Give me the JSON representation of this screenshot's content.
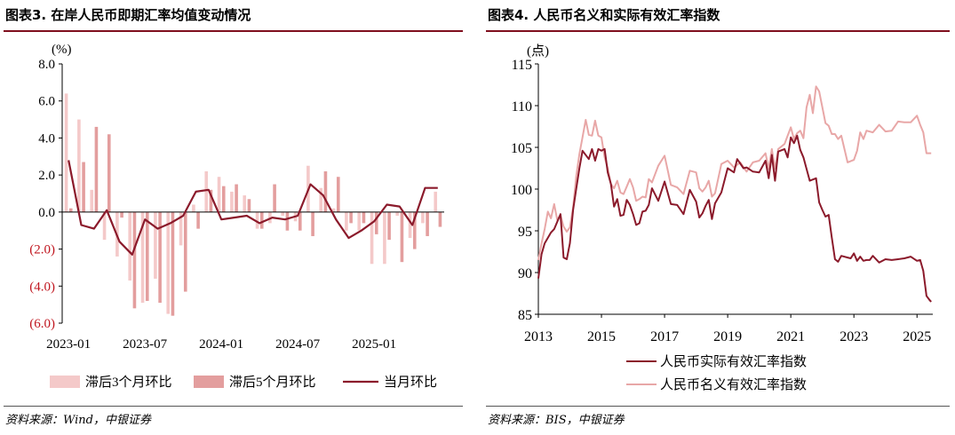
{
  "left": {
    "title": "图表3. 在岸人民币即期汇率均值变动情况",
    "source": "资料来源：Wind，中银证券",
    "chart_data": {
      "type": "bar",
      "unit_label": "(%)",
      "ylim": [
        -6,
        8
      ],
      "yticks": [
        8,
        6,
        4,
        2,
        0,
        -2,
        -4,
        -6
      ],
      "ytick_labels": [
        "8.0",
        "6.0",
        "4.0",
        "2.0",
        "0.0",
        "(2.0)",
        "(4.0)",
        "(6.0)"
      ],
      "xtick_labels": [
        "2023-01",
        "2023-07",
        "2024-01",
        "2024-07",
        "2025-01"
      ],
      "months": [
        "2023-01",
        "2023-02",
        "2023-03",
        "2023-04",
        "2023-05",
        "2023-06",
        "2023-07",
        "2023-08",
        "2023-09",
        "2023-10",
        "2023-11",
        "2023-12",
        "2024-01",
        "2024-02",
        "2024-03",
        "2024-04",
        "2024-05",
        "2024-06",
        "2024-07",
        "2024-08",
        "2024-09",
        "2024-10",
        "2024-11",
        "2024-12",
        "2025-01",
        "2025-02",
        "2025-03",
        "2025-04",
        "2025-05",
        "2025-06"
      ],
      "series": [
        {
          "name": "滞后3个月环比",
          "color": "#f4c9c9",
          "type": "bar",
          "values": [
            6.4,
            5.0,
            1.2,
            -1.5,
            -2.4,
            -3.7,
            -4.9,
            -3.6,
            -5.5,
            -1.8,
            0.4,
            2.2,
            1.9,
            1.1,
            0.9,
            -0.9,
            -0.6,
            -0.2,
            -0.5,
            2.5,
            1.3,
            0.2,
            -1.0,
            -1.0,
            -2.8,
            -2.8,
            -0.2,
            -1.4,
            -0.6,
            1.1
          ]
        },
        {
          "name": "滞后5个月环比",
          "color": "#e39e9e",
          "type": "bar",
          "values": [
            0.2,
            2.7,
            4.6,
            4.2,
            -0.3,
            -5.2,
            -4.8,
            -4.9,
            -5.6,
            -4.3,
            -0.9,
            1.2,
            1.4,
            1.5,
            0.7,
            -0.9,
            1.5,
            -1.0,
            -1.0,
            -1.3,
            2.2,
            1.9,
            -0.6,
            -0.6,
            -1.2,
            -1.5,
            -2.7,
            -2.0,
            -1.3,
            -0.8
          ]
        },
        {
          "name": "当月环比",
          "color": "#8b1a2b",
          "type": "line",
          "values": [
            2.8,
            -0.7,
            -0.9,
            0.1,
            -1.6,
            -2.3,
            -0.4,
            -0.9,
            -0.6,
            -0.2,
            1.1,
            1.2,
            -0.4,
            -0.3,
            -0.2,
            -0.6,
            -0.3,
            -0.4,
            -0.2,
            1.5,
            0.9,
            -0.4,
            -1.4,
            -1.0,
            -0.5,
            0.4,
            0.3,
            -0.7,
            1.3,
            1.3
          ]
        }
      ]
    }
  },
  "right": {
    "title": "图表4. 人民币名义和实际有效汇率指数",
    "source": "资料来源：BIS，中银证券",
    "chart_data": {
      "type": "line",
      "unit_label": "(点)",
      "ylim": [
        85,
        115
      ],
      "yticks": [
        85,
        90,
        95,
        100,
        105,
        110,
        115
      ],
      "xlim": [
        2013,
        2025.5
      ],
      "xticks": [
        2013,
        2015,
        2017,
        2019,
        2021,
        2023,
        2025
      ],
      "series": [
        {
          "name": "人民币实际有效汇率指数",
          "color": "#8b1a2b",
          "x": [
            2013.0,
            2013.1,
            2013.2,
            2013.4,
            2013.5,
            2013.7,
            2013.8,
            2013.9,
            2014.0,
            2014.1,
            2014.2,
            2014.3,
            2014.4,
            2014.6,
            2014.7,
            2014.8,
            2014.9,
            2015.0,
            2015.1,
            2015.2,
            2015.3,
            2015.4,
            2015.5,
            2015.6,
            2015.7,
            2015.8,
            2015.9,
            2016.0,
            2016.1,
            2016.2,
            2016.3,
            2016.4,
            2016.5,
            2016.6,
            2016.8,
            2017.0,
            2017.2,
            2017.4,
            2017.6,
            2017.8,
            2018.0,
            2018.1,
            2018.2,
            2018.3,
            2018.4,
            2018.5,
            2018.6,
            2018.8,
            2019.0,
            2019.2,
            2019.3,
            2019.5,
            2019.6,
            2019.8,
            2020.0,
            2020.2,
            2020.3,
            2020.4,
            2020.5,
            2020.6,
            2020.8,
            2020.9,
            2021.0,
            2021.1,
            2021.2,
            2021.3,
            2021.4,
            2021.6,
            2021.8,
            2021.9,
            2022.0,
            2022.1,
            2022.2,
            2022.3,
            2022.4,
            2022.5,
            2022.6,
            2022.8,
            2022.9,
            2023.0,
            2023.1,
            2023.2,
            2023.3,
            2023.4,
            2023.5,
            2023.6,
            2023.8,
            2024.0,
            2024.2,
            2024.4,
            2024.6,
            2024.8,
            2025.0,
            2025.1,
            2025.2,
            2025.3,
            2025.4,
            2025.45
          ],
          "y": [
            89.3,
            92.2,
            93.5,
            94.8,
            95.2,
            97.0,
            91.8,
            91.6,
            93.5,
            97.5,
            100.0,
            102.5,
            104.6,
            103.6,
            104.8,
            103.4,
            104.8,
            104.6,
            104.8,
            102.0,
            100.6,
            97.9,
            98.8,
            96.8,
            96.9,
            98.7,
            98.1,
            97.0,
            95.7,
            95.9,
            97.3,
            97.4,
            98.1,
            100.1,
            98.6,
            100.9,
            98.2,
            98.1,
            97.0,
            99.9,
            98.5,
            96.6,
            97.1,
            98.0,
            98.7,
            96.4,
            98.3,
            99.6,
            102.5,
            102.0,
            103.6,
            102.5,
            102.6,
            102.1,
            102.0,
            103.4,
            101.3,
            104.1,
            101.0,
            104.5,
            104.8,
            103.8,
            106.2,
            105.5,
            106.4,
            104.7,
            103.8,
            101.0,
            101.3,
            98.4,
            97.5,
            96.7,
            96.9,
            94.2,
            91.6,
            91.3,
            92.0,
            91.8,
            91.7,
            92.3,
            91.4,
            91.9,
            91.4,
            91.5,
            91.5,
            92.0,
            91.2,
            91.6,
            91.5,
            91.6,
            91.7,
            91.9,
            91.4,
            91.5,
            90.2,
            87.2,
            86.7,
            86.5
          ]
        },
        {
          "name": "人民币名义有效汇率指数",
          "color": "#e8a7a7",
          "x": [
            2013.0,
            2013.1,
            2013.2,
            2013.3,
            2013.4,
            2013.5,
            2013.6,
            2013.7,
            2013.8,
            2013.9,
            2014.0,
            2014.1,
            2014.2,
            2014.3,
            2014.4,
            2014.5,
            2014.6,
            2014.7,
            2014.8,
            2014.9,
            2015.0,
            2015.1,
            2015.2,
            2015.3,
            2015.4,
            2015.5,
            2015.6,
            2015.7,
            2015.8,
            2015.9,
            2016.0,
            2016.1,
            2016.2,
            2016.3,
            2016.4,
            2016.5,
            2016.6,
            2016.8,
            2017.0,
            2017.2,
            2017.4,
            2017.6,
            2017.8,
            2018.0,
            2018.1,
            2018.2,
            2018.3,
            2018.4,
            2018.5,
            2018.6,
            2018.8,
            2019.0,
            2019.2,
            2019.4,
            2019.6,
            2019.8,
            2020.0,
            2020.2,
            2020.3,
            2020.4,
            2020.5,
            2020.6,
            2020.8,
            2021.0,
            2021.1,
            2021.2,
            2021.3,
            2021.4,
            2021.5,
            2021.6,
            2021.7,
            2021.8,
            2021.9,
            2022.0,
            2022.1,
            2022.2,
            2022.3,
            2022.4,
            2022.5,
            2022.6,
            2022.8,
            2023.0,
            2023.1,
            2023.2,
            2023.3,
            2023.4,
            2023.6,
            2023.8,
            2024.0,
            2024.2,
            2024.4,
            2024.6,
            2024.8,
            2025.0,
            2025.1,
            2025.2,
            2025.3,
            2025.4,
            2025.45
          ],
          "y": [
            91.5,
            93.5,
            95.2,
            97.3,
            96.5,
            98.2,
            96.3,
            96.9,
            95.5,
            94.9,
            95.4,
            97.8,
            101.5,
            104.2,
            106.2,
            108.3,
            106.5,
            106.4,
            108.2,
            106.4,
            106.2,
            103.8,
            102.5,
            100.6,
            100.1,
            101.0,
            99.6,
            99.4,
            100.3,
            101.2,
            100.2,
            98.6,
            98.8,
            99.1,
            99.0,
            101.2,
            100.8,
            102.8,
            104.0,
            100.5,
            100.2,
            99.4,
            102.2,
            102.0,
            100.1,
            99.7,
            100.2,
            101.0,
            99.1,
            99.5,
            103.0,
            103.4,
            102.6,
            103.2,
            102.1,
            103.2,
            103.4,
            104.3,
            102.4,
            104.8,
            102.4,
            104.8,
            105.4,
            107.4,
            106.0,
            106.7,
            107.0,
            106.1,
            109.8,
            111.3,
            109.1,
            112.3,
            111.7,
            109.8,
            107.9,
            107.6,
            106.6,
            106.6,
            106.0,
            106.4,
            103.2,
            103.5,
            104.6,
            106.8,
            106.0,
            107.0,
            106.8,
            107.7,
            106.9,
            107.0,
            108.1,
            108.0,
            108.0,
            108.8,
            107.7,
            106.8,
            104.3,
            104.3,
            104.3
          ]
        }
      ]
    }
  }
}
